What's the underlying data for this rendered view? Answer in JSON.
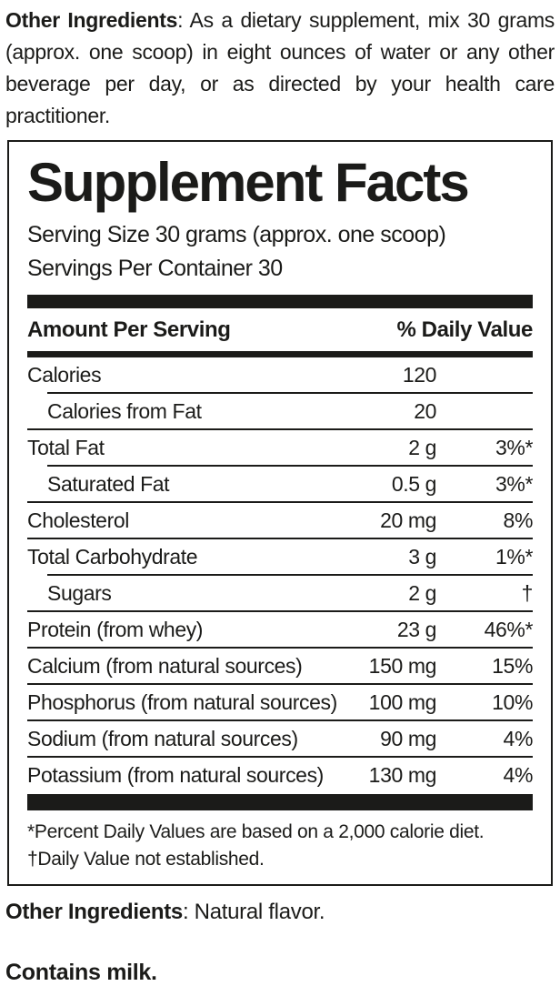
{
  "colors": {
    "ink": "#1b1b19",
    "background": "#ffffff"
  },
  "top_note": {
    "label": "Other Ingredients",
    "text": ": As a dietary supplement, mix 30 grams (approx. one scoop) in eight ounces of water or any other beverage per day, or as directed by your health care practitioner."
  },
  "panel": {
    "title": "Supplement Facts",
    "serving_size": "Serving Size 30 grams (approx. one scoop)",
    "servings_per_container": "Servings Per Container 30",
    "header": {
      "amount_per_serving": "Amount Per Serving",
      "daily_value": "% Daily Value"
    },
    "rows": [
      {
        "name": "Calories",
        "amount": "120",
        "dv": "",
        "indent": false
      },
      {
        "name": "Calories from Fat",
        "amount": "20",
        "dv": "",
        "indent": true
      },
      {
        "name": "Total Fat",
        "amount": "2 g",
        "dv": "3%*",
        "indent": false
      },
      {
        "name": "Saturated Fat",
        "amount": "0.5 g",
        "dv": "3%*",
        "indent": true
      },
      {
        "name": "Cholesterol",
        "amount": "20 mg",
        "dv": "8%",
        "indent": false
      },
      {
        "name": "Total Carbohydrate",
        "amount": "3 g",
        "dv": "1%*",
        "indent": false
      },
      {
        "name": "Sugars",
        "amount": "2 g",
        "dv": "†",
        "indent": true
      },
      {
        "name": "Protein (from whey)",
        "amount": "23 g",
        "dv": "46%*",
        "indent": false
      },
      {
        "name": "Calcium (from natural sources)",
        "amount": "150 mg",
        "dv": "15%",
        "indent": false
      },
      {
        "name": "Phosphorus (from natural sources)",
        "amount": "100 mg",
        "dv": "10%",
        "indent": false
      },
      {
        "name": "Sodium (from natural sources)",
        "amount": "90 mg",
        "dv": "4%",
        "indent": false
      },
      {
        "name": "Potassium (from natural sources)",
        "amount": "130 mg",
        "dv": "4%",
        "indent": false
      }
    ],
    "footnotes": [
      "*Percent Daily Values are based on a 2,000 calorie diet.",
      "†Daily Value not established."
    ]
  },
  "bottom_notes": {
    "other_ingredients_label": "Other Ingredients",
    "other_ingredients_text": ": Natural flavor.",
    "allergen": "Contains milk."
  }
}
